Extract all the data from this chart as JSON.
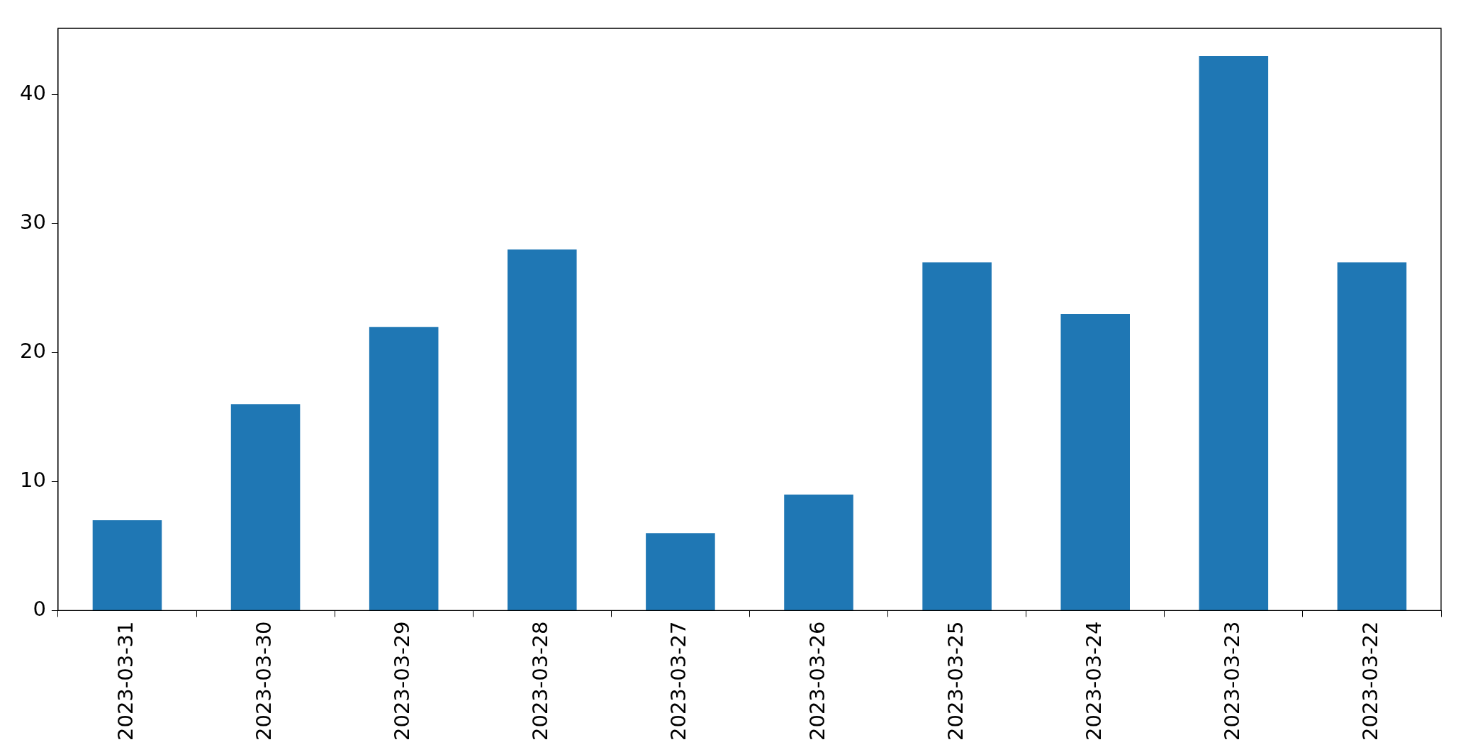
{
  "chart_data": {
    "type": "bar",
    "categories": [
      "2023-03-31",
      "2023-03-30",
      "2023-03-29",
      "2023-03-28",
      "2023-03-27",
      "2023-03-26",
      "2023-03-25",
      "2023-03-24",
      "2023-03-23",
      "2023-03-22"
    ],
    "values": [
      7,
      16,
      22,
      28,
      6,
      9,
      27,
      23,
      43,
      27
    ],
    "color": "#1f77b4",
    "ylim": [
      0,
      45.15
    ],
    "yticks": [
      0,
      10,
      20,
      30,
      40
    ],
    "grid": false,
    "legend": false
  }
}
